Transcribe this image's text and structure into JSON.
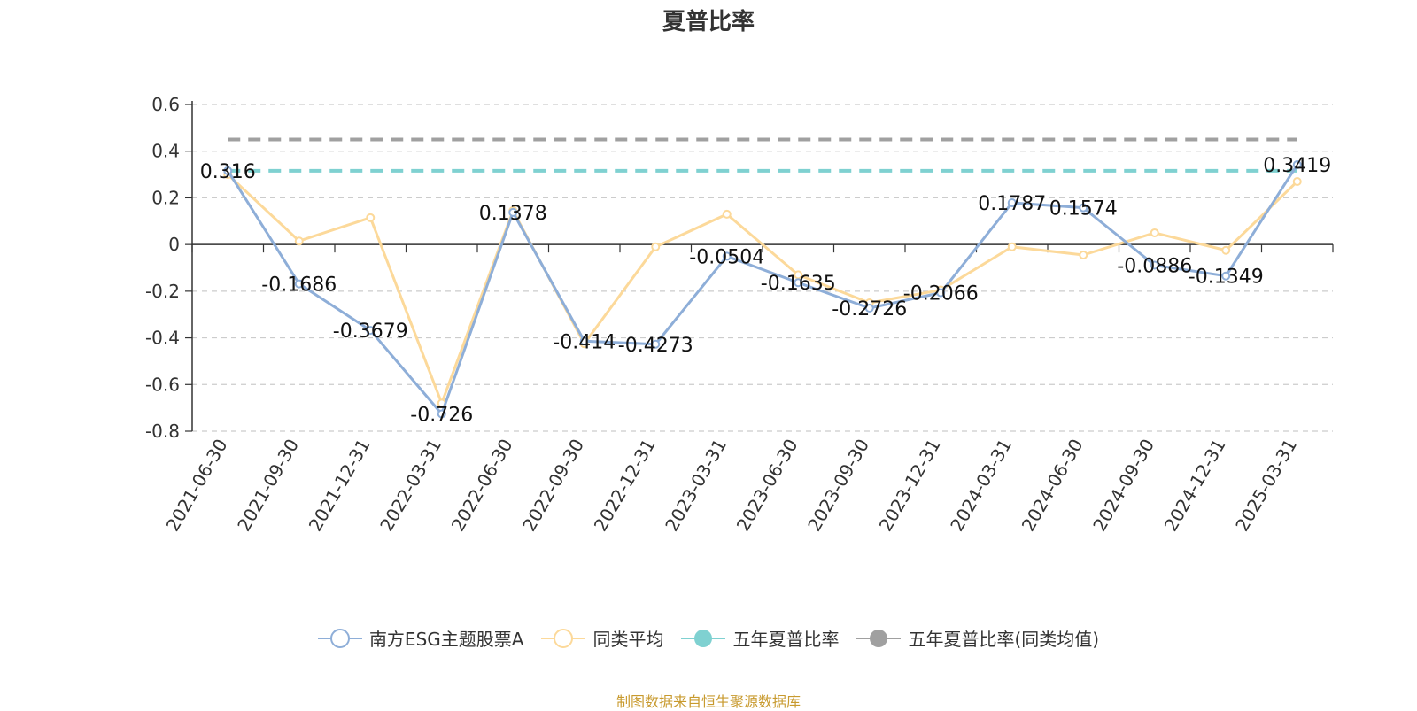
{
  "chart_data": {
    "type": "line",
    "title": "夏普比率",
    "categories": [
      "2021-06-30",
      "2021-09-30",
      "2021-12-31",
      "2022-03-31",
      "2022-06-30",
      "2022-09-30",
      "2022-12-31",
      "2023-03-31",
      "2023-06-30",
      "2023-09-30",
      "2023-12-31",
      "2024-03-31",
      "2024-06-30",
      "2024-09-30",
      "2024-12-31",
      "2025-03-31"
    ],
    "ylim": [
      -0.8,
      0.6
    ],
    "yticks": [
      "0.6",
      "0.4",
      "0.2",
      "0",
      "-0.2",
      "-0.4",
      "-0.6",
      "-0.8"
    ],
    "ytick_values": [
      0.6,
      0.4,
      0.2,
      0,
      -0.2,
      -0.4,
      -0.6,
      -0.8
    ],
    "grid": true,
    "legend_position": "bottom",
    "series": [
      {
        "name": "南方ESG主题股票A",
        "color": "#8eaed8",
        "values": [
          0.316,
          -0.1686,
          -0.3679,
          -0.726,
          0.1378,
          -0.414,
          -0.4273,
          -0.0504,
          -0.1635,
          -0.2726,
          -0.2066,
          0.1787,
          0.1574,
          -0.0886,
          -0.1349,
          0.3419
        ],
        "labels": [
          "0.316",
          "-0.1686",
          "-0.3679",
          "-0.726",
          "0.1378",
          "-0.414",
          "-0.4273",
          "-0.0504",
          "-0.1635",
          "-0.2726",
          "-0.2066",
          "0.1787",
          "0.1574",
          "-0.0886",
          "-0.1349",
          "0.3419"
        ]
      },
      {
        "name": "同类平均",
        "color": "#fcd99a",
        "values": [
          0.3,
          0.015,
          0.115,
          -0.68,
          0.145,
          -0.425,
          -0.01,
          0.13,
          -0.13,
          -0.25,
          -0.195,
          -0.01,
          -0.045,
          0.05,
          -0.025,
          0.27
        ]
      },
      {
        "name": "五年夏普比率",
        "color": "#7fd1d1",
        "constant": 0.316,
        "style": "dashed"
      },
      {
        "name": "五年夏普比率(同类均值)",
        "color": "#a0a0a0",
        "constant": 0.45,
        "style": "dashed"
      }
    ]
  },
  "legend": {
    "fund": "南方ESG主题股票A",
    "avg": "同类平均",
    "five_year": "五年夏普比率",
    "five_year_avg": "五年夏普比率(同类均值)"
  },
  "source": "制图数据来自恒生聚源数据库"
}
